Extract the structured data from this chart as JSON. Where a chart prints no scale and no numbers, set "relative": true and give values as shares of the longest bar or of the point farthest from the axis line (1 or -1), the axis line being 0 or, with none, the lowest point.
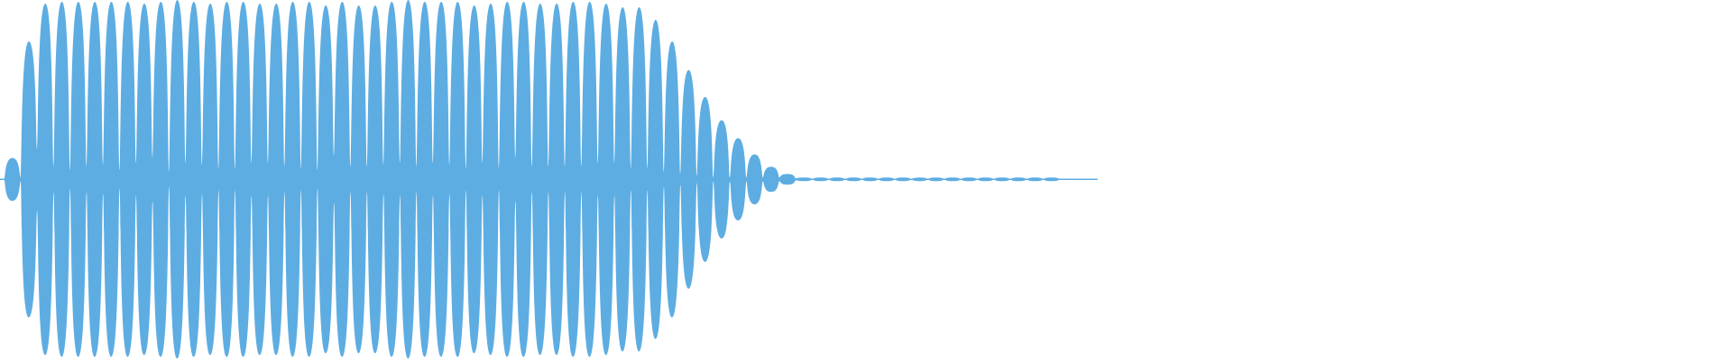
{
  "chart_data": {
    "type": "area",
    "relative": true,
    "categories": [
      null,
      null,
      null,
      null,
      null,
      null,
      null,
      null,
      null,
      null,
      null,
      null,
      null,
      null,
      null,
      null,
      null,
      null,
      null,
      null,
      null,
      null,
      null,
      null,
      null,
      null,
      null,
      null,
      null,
      null,
      null,
      null,
      null,
      null,
      null,
      null,
      null,
      null,
      null,
      null,
      null,
      null,
      null,
      null,
      null,
      null,
      null,
      null,
      null,
      null,
      null,
      null,
      null,
      null,
      null,
      null,
      null,
      null,
      null,
      null,
      null,
      null,
      null,
      null,
      null,
      null,
      null,
      null,
      null,
      null,
      null,
      null,
      null,
      null,
      null,
      null,
      null,
      null,
      null,
      null,
      null,
      null,
      null,
      null,
      null,
      null,
      null,
      null,
      null,
      null,
      null,
      null,
      null,
      null,
      null,
      null,
      null,
      null,
      null,
      null,
      null,
      null,
      null,
      null,
      null,
      null,
      null,
      null,
      null,
      null,
      null,
      null,
      null,
      null,
      null,
      null,
      null,
      null,
      null,
      null,
      null,
      null,
      null,
      null,
      null,
      null,
      null,
      null,
      null,
      null,
      null,
      null,
      null
    ],
    "series": [
      {
        "color": "#5dade2",
        "values": [
          0,
          0.12,
          0.01,
          0.77,
          0.17,
          0.98,
          0.07,
          0.99,
          0.05,
          0.99,
          0.07,
          0.99,
          0.08,
          0.99,
          0.05,
          0.99,
          0.09,
          0.98,
          0.12,
          0.99,
          0.04,
          1.0,
          0.09,
          0.99,
          0.08,
          0.98,
          0.06,
          0.99,
          0.06,
          0.99,
          0.09,
          0.98,
          0.09,
          0.98,
          0.07,
          0.99,
          0.06,
          0.99,
          0.05,
          0.97,
          0.13,
          0.99,
          0.07,
          0.97,
          0.07,
          0.97,
          0.08,
          0.99,
          0.09,
          1.0,
          0.07,
          0.99,
          0.09,
          0.99,
          0.08,
          0.99,
          0.06,
          0.97,
          0.09,
          0.98,
          0.06,
          0.99,
          0.12,
          0.99,
          0.07,
          0.98,
          0.07,
          0.98,
          0.07,
          0.99,
          0.07,
          0.99,
          0.09,
          0.98,
          0.09,
          0.96,
          0.06,
          0.96,
          0.06,
          0.89,
          0.04,
          0.77,
          0.03,
          0.61,
          0.02,
          0.46,
          0.01,
          0.33,
          0.01,
          0.23,
          0.01,
          0.14,
          0.01,
          0.07,
          0.01,
          0.03,
          0.005,
          0.01,
          0,
          0.01,
          0,
          0.01,
          0,
          0.01,
          0,
          0.01,
          0,
          0.01,
          0,
          0.01,
          0,
          0.01,
          0,
          0.01,
          0,
          0.01,
          0,
          0.01,
          0,
          0.01,
          0,
          0.01,
          0,
          0.01,
          0,
          0.01,
          0,
          0.01,
          0,
          0,
          0,
          0,
          0
        ]
      },
      {
        "color": "#5eade2",
        "values": [
          0,
          -0.12,
          -0.01,
          -0.77,
          -0.17,
          -0.98,
          -0.07,
          -0.99,
          -0.05,
          -0.99,
          -0.07,
          -0.99,
          -0.08,
          -0.99,
          -0.05,
          -0.99,
          -0.09,
          -0.98,
          -0.12,
          -0.99,
          -0.04,
          -1.0,
          -0.09,
          -0.99,
          -0.08,
          -0.98,
          -0.06,
          -0.99,
          -0.06,
          -0.99,
          -0.09,
          -0.98,
          -0.09,
          -0.98,
          -0.07,
          -0.99,
          -0.06,
          -0.99,
          -0.05,
          -0.97,
          -0.13,
          -0.99,
          -0.07,
          -0.97,
          -0.07,
          -0.97,
          -0.08,
          -0.99,
          -0.09,
          -1.0,
          -0.07,
          -0.99,
          -0.09,
          -0.99,
          -0.08,
          -0.99,
          -0.06,
          -0.97,
          -0.09,
          -0.98,
          -0.06,
          -0.99,
          -0.12,
          -0.99,
          -0.07,
          -0.98,
          -0.07,
          -0.98,
          -0.07,
          -0.99,
          -0.07,
          -0.99,
          -0.09,
          -0.98,
          -0.09,
          -0.96,
          -0.06,
          -0.96,
          -0.06,
          -0.89,
          -0.04,
          -0.77,
          -0.03,
          -0.61,
          -0.02,
          -0.46,
          -0.01,
          -0.33,
          -0.01,
          -0.23,
          -0.01,
          -0.14,
          -0.01,
          -0.07,
          -0.01,
          -0.03,
          -0.005,
          -0.01,
          0,
          -0.01,
          0,
          -0.01,
          0,
          -0.01,
          0,
          -0.01,
          0,
          -0.01,
          0,
          -0.01,
          0,
          -0.01,
          0,
          -0.01,
          0,
          -0.01,
          0,
          -0.01,
          0,
          -0.01,
          0,
          -0.01,
          0,
          -0.01,
          0,
          -0.01,
          0,
          -0.01,
          0,
          0,
          0,
          0,
          0
        ]
      }
    ]
  }
}
